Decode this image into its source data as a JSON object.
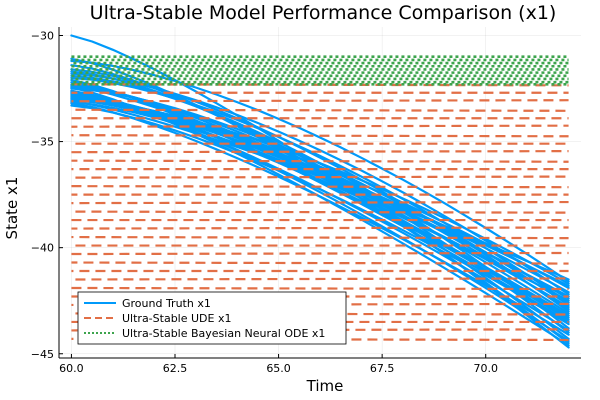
{
  "chart_data": {
    "type": "line",
    "title": "Ultra-Stable Model Performance Comparison (x1)",
    "xlabel": "Time",
    "ylabel": "State x1",
    "xlim": [
      59.7,
      72.3
    ],
    "ylim": [
      -45.2,
      -29.6
    ],
    "xticks": [
      60.0,
      62.5,
      65.0,
      67.5,
      70.0
    ],
    "xtick_labels": [
      "60.0",
      "62.5",
      "65.0",
      "67.5",
      "70.0"
    ],
    "yticks": [
      -30,
      -35,
      -40,
      -45
    ],
    "ytick_labels": [
      "−30",
      "−35",
      "−40",
      "−45"
    ],
    "grid": true,
    "legend_position": "bottom-left",
    "series": [
      {
        "name": "Ground Truth x1",
        "color": "#009AFA",
        "style": "solid",
        "x_range": [
          60.0,
          72.0
        ],
        "description": "~30 trajectories decreasing from about -30 to -33 at t=60 down to about -41.5 to -44.8 at t=72",
        "start_values": [
          -30.0,
          -31.1,
          -31.4,
          -31.7,
          -31.9,
          -32.1,
          -32.2,
          -32.3,
          -32.4,
          -32.5,
          -32.6,
          -32.7,
          -32.8,
          -32.9,
          -33.0,
          -33.1,
          -33.2,
          -33.3,
          -31.6,
          -32.0,
          -32.45,
          -32.75,
          -32.95,
          -33.15,
          -31.8,
          -32.35,
          -32.65,
          -32.85,
          -33.05,
          -31.2
        ],
        "end_values": [
          -44.7,
          -44.5,
          -44.3,
          -44.0,
          -43.8,
          -43.5,
          -43.3,
          -43.1,
          -42.9,
          -42.7,
          -42.5,
          -42.3,
          -42.1,
          -41.9,
          -41.7,
          -41.5,
          -44.1,
          -43.6,
          -43.0,
          -42.6,
          -44.6,
          -43.9,
          -43.2,
          -42.8,
          -42.2,
          -41.8,
          -44.4,
          -43.4,
          -42.4,
          -41.6
        ]
      },
      {
        "name": "Ultra-Stable UDE x1",
        "color": "#E26F46",
        "style": "dashed",
        "x_range": [
          60.0,
          72.0
        ],
        "description": "~33 nearly flat dashed lines spaced between about -32.3 and -44.3",
        "values": [
          -32.3,
          -32.7,
          -33.1,
          -33.5,
          -33.9,
          -34.3,
          -34.7,
          -35.1,
          -35.5,
          -35.9,
          -36.3,
          -36.7,
          -37.1,
          -37.5,
          -37.9,
          -38.3,
          -38.7,
          -39.1,
          -39.5,
          -39.9,
          -40.3,
          -40.7,
          -41.1,
          -41.5,
          -41.9,
          -42.3,
          -42.7,
          -43.1,
          -43.5,
          -43.9,
          -44.3
        ]
      },
      {
        "name": "Ultra-Stable Bayesian Neural ODE x1",
        "color": "#3DA44D",
        "style": "dotted",
        "x_range": [
          60.0,
          72.0
        ],
        "description": "dense band of dotted lines between about -31.0 and -32.3",
        "values": [
          -31.0,
          -31.15,
          -31.3,
          -31.45,
          -31.6,
          -31.75,
          -31.9,
          -32.05,
          -32.2,
          -32.3
        ]
      }
    ]
  }
}
